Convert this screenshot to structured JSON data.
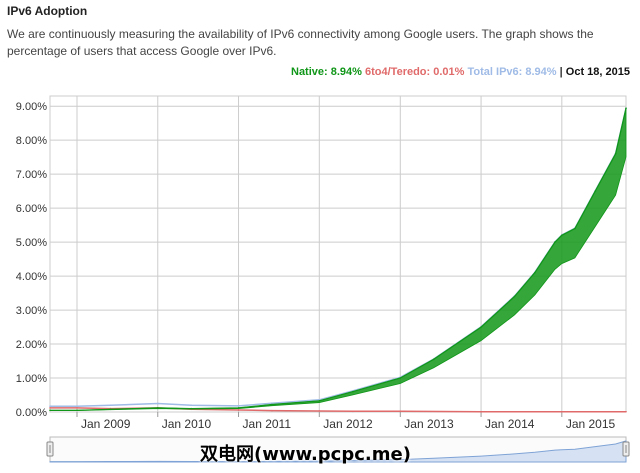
{
  "page": {
    "title": "IPv6 Adoption",
    "description": "We are continuously measuring the availability of IPv6 connectivity among Google users. The graph shows the percentage of users that access Google over IPv6."
  },
  "legend": {
    "native_label": "Native: 8.94%",
    "teredo_label": "6to4/Teredo: 0.01%",
    "total_label": "Total IPv6: 8.94%",
    "separator": "|",
    "date": "Oct 18, 2015"
  },
  "watermark": "双电网(www.pcpc.me)",
  "colors": {
    "native": "#109618",
    "teredo": "#e06a6a",
    "total": "#9fbbe6",
    "grid": "#cccccc",
    "navigator_fill": "#d6e2f3"
  },
  "chart_data": {
    "type": "line",
    "title": "",
    "xlabel": "",
    "ylabel": "",
    "ylim": [
      0,
      9.3
    ],
    "xlim": [
      "2008-09-01",
      "2015-10-18"
    ],
    "y_ticks": [
      "0.00%",
      "1.00%",
      "2.00%",
      "3.00%",
      "4.00%",
      "5.00%",
      "6.00%",
      "7.00%",
      "8.00%",
      "9.00%"
    ],
    "x_ticks": [
      "Jan 2009",
      "Jan 2010",
      "Jan 2011",
      "Jan 2012",
      "Jan 2013",
      "Jan 2014",
      "Jan 2015"
    ],
    "grid": true,
    "legend_position": "top-right",
    "navigator": true,
    "series": [
      {
        "name": "Native",
        "x": [
          "2008-09-01",
          "2009-01-01",
          "2009-06-01",
          "2010-01-01",
          "2010-06-01",
          "2011-01-01",
          "2011-06-01",
          "2012-01-01",
          "2012-06-01",
          "2013-01-01",
          "2013-06-01",
          "2014-01-01",
          "2014-06-01",
          "2014-09-01",
          "2014-12-01",
          "2015-01-01",
          "2015-03-01",
          "2015-06-01",
          "2015-09-01",
          "2015-10-18"
        ],
        "values": [
          0.05,
          0.05,
          0.08,
          0.12,
          0.1,
          0.12,
          0.22,
          0.33,
          0.6,
          1.0,
          1.55,
          2.5,
          3.4,
          4.1,
          5.0,
          5.2,
          5.4,
          6.5,
          7.6,
          8.94
        ]
      },
      {
        "name": "6to4/Teredo",
        "x": [
          "2008-09-01",
          "2009-01-01",
          "2009-06-01",
          "2010-01-01",
          "2010-06-01",
          "2011-01-01",
          "2011-06-01",
          "2012-01-01",
          "2012-06-01",
          "2013-01-01",
          "2014-01-01",
          "2015-01-01",
          "2015-10-18"
        ],
        "values": [
          0.12,
          0.12,
          0.1,
          0.12,
          0.08,
          0.06,
          0.04,
          0.03,
          0.02,
          0.02,
          0.01,
          0.01,
          0.01
        ]
      },
      {
        "name": "Total IPv6",
        "x": [
          "2008-09-01",
          "2009-01-01",
          "2009-06-01",
          "2010-01-01",
          "2010-06-01",
          "2011-01-01",
          "2011-06-01",
          "2012-01-01",
          "2012-06-01",
          "2013-01-01",
          "2013-06-01",
          "2014-01-01",
          "2014-06-01",
          "2014-09-01",
          "2014-12-01",
          "2015-01-01",
          "2015-03-01",
          "2015-06-01",
          "2015-09-01",
          "2015-10-18"
        ],
        "values": [
          0.17,
          0.17,
          0.2,
          0.25,
          0.2,
          0.18,
          0.26,
          0.36,
          0.62,
          1.02,
          1.56,
          2.51,
          3.41,
          4.11,
          5.01,
          5.21,
          5.41,
          6.51,
          7.61,
          8.94
        ]
      }
    ]
  }
}
